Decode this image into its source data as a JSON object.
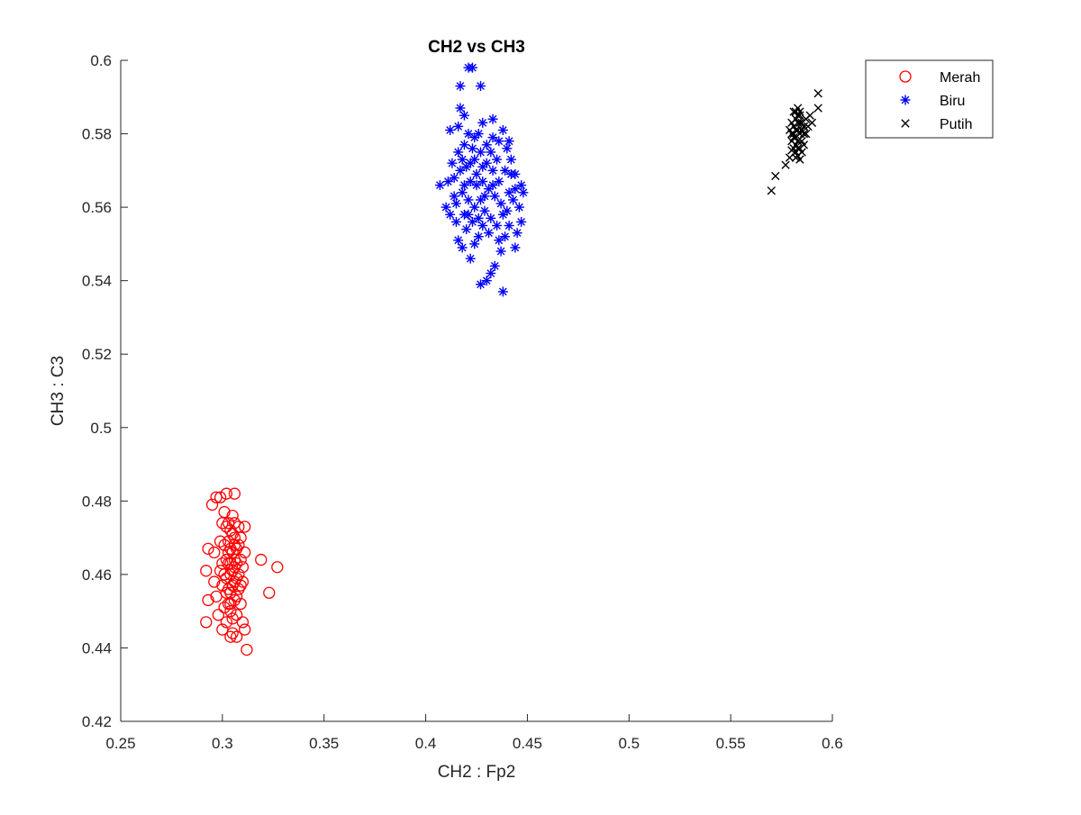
{
  "chart_data": {
    "type": "scatter",
    "title": "CH2 vs CH3",
    "xlabel": "CH2 : Fp2",
    "ylabel": "CH3 : C3",
    "xlim": [
      0.25,
      0.6
    ],
    "ylim": [
      0.42,
      0.6
    ],
    "xticks": [
      0.25,
      0.3,
      0.35,
      0.4,
      0.45,
      0.5,
      0.55,
      0.6
    ],
    "xtick_labels": [
      "0.25",
      "0.3",
      "0.35",
      "0.4",
      "0.45",
      "0.5",
      "0.55",
      "0.6"
    ],
    "yticks": [
      0.42,
      0.44,
      0.46,
      0.48,
      0.5,
      0.52,
      0.54,
      0.56,
      0.58,
      0.6
    ],
    "ytick_labels": [
      "0.42",
      "0.44",
      "0.46",
      "0.48",
      "0.5",
      "0.52",
      "0.54",
      "0.56",
      "0.58",
      "0.6"
    ],
    "grid": false,
    "legend_position": "top-right, outside plot area",
    "series": [
      {
        "name": "Merah",
        "marker": "circle",
        "color": "#ff0000",
        "points": [
          [
            0.292,
            0.447
          ],
          [
            0.293,
            0.453
          ],
          [
            0.292,
            0.461
          ],
          [
            0.293,
            0.467
          ],
          [
            0.295,
            0.479
          ],
          [
            0.297,
            0.481
          ],
          [
            0.299,
            0.481
          ],
          [
            0.302,
            0.482
          ],
          [
            0.306,
            0.482
          ],
          [
            0.312,
            0.4395
          ],
          [
            0.311,
            0.445
          ],
          [
            0.307,
            0.443
          ],
          [
            0.304,
            0.443
          ],
          [
            0.3,
            0.445
          ],
          [
            0.319,
            0.464
          ],
          [
            0.323,
            0.455
          ],
          [
            0.327,
            0.462
          ],
          [
            0.296,
            0.466
          ],
          [
            0.296,
            0.458
          ],
          [
            0.297,
            0.454
          ],
          [
            0.298,
            0.449
          ],
          [
            0.299,
            0.461
          ],
          [
            0.299,
            0.469
          ],
          [
            0.3,
            0.474
          ],
          [
            0.301,
            0.477
          ],
          [
            0.302,
            0.473
          ],
          [
            0.3,
            0.457
          ],
          [
            0.301,
            0.451
          ],
          [
            0.302,
            0.447
          ],
          [
            0.303,
            0.456
          ],
          [
            0.303,
            0.463
          ],
          [
            0.303,
            0.469
          ],
          [
            0.304,
            0.472
          ],
          [
            0.304,
            0.46
          ],
          [
            0.304,
            0.452
          ],
          [
            0.305,
            0.448
          ],
          [
            0.305,
            0.466
          ],
          [
            0.305,
            0.476
          ],
          [
            0.306,
            0.47
          ],
          [
            0.306,
            0.458
          ],
          [
            0.306,
            0.462
          ],
          [
            0.307,
            0.454
          ],
          [
            0.307,
            0.449
          ],
          [
            0.307,
            0.467
          ],
          [
            0.308,
            0.473
          ],
          [
            0.308,
            0.46
          ],
          [
            0.308,
            0.456
          ],
          [
            0.309,
            0.464
          ],
          [
            0.309,
            0.47
          ],
          [
            0.309,
            0.452
          ],
          [
            0.31,
            0.447
          ],
          [
            0.31,
            0.458
          ],
          [
            0.311,
            0.466
          ],
          [
            0.311,
            0.473
          ],
          [
            0.31,
            0.462
          ],
          [
            0.302,
            0.459
          ],
          [
            0.303,
            0.466
          ],
          [
            0.304,
            0.455
          ],
          [
            0.305,
            0.461
          ],
          [
            0.306,
            0.464
          ],
          [
            0.307,
            0.459
          ],
          [
            0.302,
            0.464
          ],
          [
            0.301,
            0.468
          ],
          [
            0.3,
            0.463
          ],
          [
            0.305,
            0.457
          ],
          [
            0.306,
            0.453
          ],
          [
            0.304,
            0.45
          ],
          [
            0.303,
            0.474
          ],
          [
            0.305,
            0.471
          ],
          [
            0.302,
            0.455
          ],
          [
            0.301,
            0.46
          ],
          [
            0.308,
            0.468
          ],
          [
            0.309,
            0.457
          ],
          [
            0.304,
            0.467
          ],
          [
            0.306,
            0.468
          ],
          [
            0.303,
            0.452
          ],
          [
            0.305,
            0.444
          ],
          [
            0.306,
            0.474
          ],
          [
            0.307,
            0.463
          ],
          [
            0.304,
            0.463
          ]
        ]
      },
      {
        "name": "Biru",
        "marker": "asterisk",
        "color": "#0000ff",
        "points": [
          [
            0.421,
            0.598
          ],
          [
            0.423,
            0.598
          ],
          [
            0.417,
            0.593
          ],
          [
            0.427,
            0.593
          ],
          [
            0.417,
            0.587
          ],
          [
            0.419,
            0.585
          ],
          [
            0.412,
            0.581
          ],
          [
            0.416,
            0.582
          ],
          [
            0.421,
            0.58
          ],
          [
            0.424,
            0.579
          ],
          [
            0.428,
            0.583
          ],
          [
            0.433,
            0.584
          ],
          [
            0.438,
            0.581
          ],
          [
            0.441,
            0.578
          ],
          [
            0.407,
            0.566
          ],
          [
            0.41,
            0.56
          ],
          [
            0.412,
            0.558
          ],
          [
            0.414,
            0.563
          ],
          [
            0.415,
            0.556
          ],
          [
            0.416,
            0.551
          ],
          [
            0.418,
            0.549
          ],
          [
            0.42,
            0.554
          ],
          [
            0.422,
            0.546
          ],
          [
            0.424,
            0.55
          ],
          [
            0.426,
            0.552
          ],
          [
            0.427,
            0.539
          ],
          [
            0.43,
            0.54
          ],
          [
            0.432,
            0.542
          ],
          [
            0.434,
            0.544
          ],
          [
            0.438,
            0.537
          ],
          [
            0.437,
            0.548
          ],
          [
            0.439,
            0.552
          ],
          [
            0.441,
            0.555
          ],
          [
            0.444,
            0.549
          ],
          [
            0.445,
            0.553
          ],
          [
            0.447,
            0.556
          ],
          [
            0.446,
            0.56
          ],
          [
            0.448,
            0.564
          ],
          [
            0.447,
            0.566
          ],
          [
            0.444,
            0.569
          ],
          [
            0.442,
            0.573
          ],
          [
            0.44,
            0.576
          ],
          [
            0.436,
            0.578
          ],
          [
            0.433,
            0.579
          ],
          [
            0.43,
            0.577
          ],
          [
            0.427,
            0.575
          ],
          [
            0.424,
            0.573
          ],
          [
            0.42,
            0.571
          ],
          [
            0.417,
            0.57
          ],
          [
            0.414,
            0.568
          ],
          [
            0.411,
            0.567
          ],
          [
            0.413,
            0.572
          ],
          [
            0.416,
            0.575
          ],
          [
            0.419,
            0.577
          ],
          [
            0.422,
            0.572
          ],
          [
            0.425,
            0.569
          ],
          [
            0.428,
            0.567
          ],
          [
            0.431,
            0.565
          ],
          [
            0.434,
            0.563
          ],
          [
            0.437,
            0.561
          ],
          [
            0.44,
            0.559
          ],
          [
            0.443,
            0.562
          ],
          [
            0.436,
            0.567
          ],
          [
            0.433,
            0.57
          ],
          [
            0.43,
            0.572
          ],
          [
            0.427,
            0.562
          ],
          [
            0.424,
            0.56
          ],
          [
            0.421,
            0.562
          ],
          [
            0.418,
            0.564
          ],
          [
            0.415,
            0.561
          ],
          [
            0.419,
            0.558
          ],
          [
            0.423,
            0.556
          ],
          [
            0.426,
            0.557
          ],
          [
            0.429,
            0.559
          ],
          [
            0.432,
            0.557
          ],
          [
            0.435,
            0.555
          ],
          [
            0.438,
            0.558
          ],
          [
            0.441,
            0.564
          ],
          [
            0.439,
            0.57
          ],
          [
            0.435,
            0.573
          ],
          [
            0.432,
            0.575
          ],
          [
            0.428,
            0.571
          ],
          [
            0.425,
            0.566
          ],
          [
            0.422,
            0.567
          ],
          [
            0.419,
            0.566
          ],
          [
            0.429,
            0.563
          ],
          [
            0.433,
            0.566
          ],
          [
            0.426,
            0.58
          ],
          [
            0.423,
            0.576
          ],
          [
            0.418,
            0.573
          ],
          [
            0.431,
            0.553
          ],
          [
            0.428,
            0.555
          ],
          [
            0.436,
            0.551
          ],
          [
            0.421,
            0.558
          ],
          [
            0.444,
            0.565
          ],
          [
            0.442,
            0.569
          ]
        ]
      },
      {
        "name": "Putih",
        "marker": "x",
        "color": "#000000",
        "points": [
          [
            0.57,
            0.5645
          ],
          [
            0.572,
            0.5685
          ],
          [
            0.577,
            0.5715
          ],
          [
            0.579,
            0.5735
          ],
          [
            0.593,
            0.591
          ],
          [
            0.593,
            0.587
          ],
          [
            0.589,
            0.585
          ],
          [
            0.59,
            0.583
          ],
          [
            0.581,
            0.586
          ],
          [
            0.583,
            0.587
          ],
          [
            0.584,
            0.585
          ],
          [
            0.582,
            0.584
          ],
          [
            0.581,
            0.582
          ],
          [
            0.58,
            0.58
          ],
          [
            0.58,
            0.578
          ],
          [
            0.581,
            0.576
          ],
          [
            0.582,
            0.575
          ],
          [
            0.583,
            0.574
          ],
          [
            0.584,
            0.576
          ],
          [
            0.585,
            0.578
          ],
          [
            0.586,
            0.58
          ],
          [
            0.586,
            0.582
          ],
          [
            0.587,
            0.584
          ],
          [
            0.585,
            0.583
          ],
          [
            0.583,
            0.581
          ],
          [
            0.582,
            0.579
          ],
          [
            0.584,
            0.58
          ],
          [
            0.583,
            0.578
          ],
          [
            0.582,
            0.577
          ],
          [
            0.581,
            0.579
          ],
          [
            0.585,
            0.581
          ],
          [
            0.584,
            0.583
          ],
          [
            0.583,
            0.583
          ],
          [
            0.582,
            0.581
          ],
          [
            0.581,
            0.58
          ],
          [
            0.586,
            0.577
          ],
          [
            0.585,
            0.575
          ],
          [
            0.584,
            0.573
          ],
          [
            0.582,
            0.5735
          ],
          [
            0.58,
            0.5755
          ],
          [
            0.587,
            0.58
          ],
          [
            0.588,
            0.582
          ],
          [
            0.583,
            0.585
          ],
          [
            0.582,
            0.586
          ],
          [
            0.584,
            0.586
          ],
          [
            0.58,
            0.583
          ],
          [
            0.579,
            0.581
          ],
          [
            0.583,
            0.576
          ]
        ]
      }
    ]
  }
}
